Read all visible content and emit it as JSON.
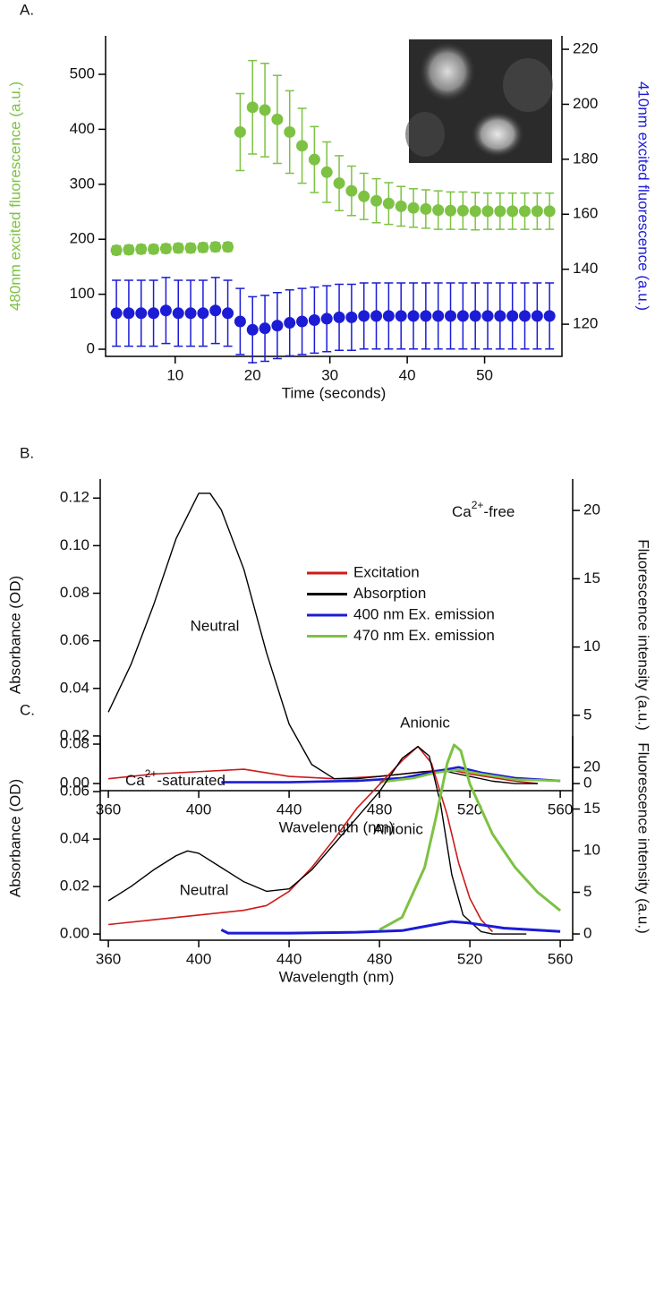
{
  "chart_data": [
    {
      "type": "scatter",
      "panel": "A.",
      "x_label": "Time (seconds)",
      "y_label": "480nm excited fluorescence (a.u.)",
      "y_label_color": "#7dc243",
      "y2_label": "410nm excited fluorescence (a.u.)",
      "y2_label_color": "#1c1cd6",
      "xlim": [
        1,
        60
      ],
      "xticks": [
        10,
        20,
        30,
        40,
        50
      ],
      "ylim": [
        -13,
        570
      ],
      "yticks": [
        0,
        100,
        200,
        300,
        400,
        500
      ],
      "y2lim": [
        108.3,
        224.9
      ],
      "y2ticks": [
        120,
        140,
        160,
        180,
        200,
        220
      ],
      "series": [
        {
          "color": "#7dc243",
          "axis": "y",
          "x": [
            2.4,
            4,
            5.6,
            7.2,
            8.8,
            10.4,
            12,
            13.6,
            15.2,
            16.8,
            18.4,
            20,
            21.6,
            23.2,
            24.8,
            26.4,
            28,
            29.6,
            31.2,
            32.8,
            34.4,
            36,
            37.6,
            39.2,
            40.8,
            42.4,
            44,
            45.6,
            47.2,
            48.8,
            50.4,
            52,
            53.6,
            55.2,
            56.8,
            58.4
          ],
          "values": [
            180,
            181,
            182,
            182,
            183,
            184,
            184,
            185,
            186,
            186,
            395,
            440,
            435,
            418,
            395,
            370,
            345,
            322,
            302,
            288,
            278,
            270,
            265,
            260,
            257,
            255,
            253,
            252,
            252,
            251,
            251,
            251,
            251,
            251,
            251,
            251
          ],
          "errors": [
            8,
            8,
            8,
            8,
            8,
            8,
            8,
            8,
            8,
            8,
            70,
            85,
            85,
            80,
            75,
            68,
            60,
            55,
            50,
            45,
            42,
            40,
            38,
            36,
            35,
            35,
            35,
            34,
            34,
            34,
            33,
            33,
            33,
            33,
            33,
            33
          ]
        },
        {
          "color": "#1c1cd6",
          "axis": "y2",
          "x": [
            2.4,
            4,
            5.6,
            7.2,
            8.8,
            10.4,
            12,
            13.6,
            15.2,
            16.8,
            18.4,
            20,
            21.6,
            23.2,
            24.8,
            26.4,
            28,
            29.6,
            31.2,
            32.8,
            34.4,
            36,
            37.6,
            39.2,
            40.8,
            42.4,
            44,
            45.6,
            47.2,
            48.8,
            50.4,
            52,
            53.6,
            55.2,
            56.8,
            58.4
          ],
          "values": [
            124,
            124,
            124,
            124,
            125,
            124,
            124,
            124,
            125,
            124,
            121,
            118,
            118.5,
            119.5,
            120.5,
            121,
            121.5,
            122,
            122.5,
            122.5,
            123,
            123,
            123,
            123,
            123,
            123,
            123,
            123,
            123,
            123,
            123,
            123,
            123,
            123,
            123,
            123
          ],
          "errors": [
            12,
            12,
            12,
            12,
            12,
            12,
            12,
            12,
            12,
            12,
            12,
            12,
            12,
            12,
            12,
            12,
            12,
            12,
            12,
            12,
            12,
            12,
            12,
            12,
            12,
            12,
            12,
            12,
            12,
            12,
            12,
            12,
            12,
            12,
            12,
            12
          ]
        }
      ],
      "annotations": []
    },
    {
      "type": "line",
      "panel": "B.",
      "x_label": "Wavelength (nm)",
      "y_label": "Absorbance (OD)",
      "y2_label": "Fluorescence intensity (a.u.)",
      "xlim": [
        356.4,
        565.5
      ],
      "xticks": [
        360,
        400,
        440,
        480,
        520,
        560
      ],
      "ylim": [
        -0.003,
        0.128
      ],
      "yticks": [
        {
          "value": 0,
          "label": "0.00"
        },
        {
          "value": 0.02,
          "label": "0.02"
        },
        {
          "value": 0.04,
          "label": "0.04"
        },
        {
          "value": 0.06,
          "label": "0.06"
        },
        {
          "value": 0.08,
          "label": "0.08"
        },
        {
          "value": 0.1,
          "label": "0.10"
        },
        {
          "value": 0.12,
          "label": "0.12"
        }
      ],
      "y2lim": [
        -0.52,
        22.3
      ],
      "y2ticks": [
        0,
        5,
        10,
        15,
        20
      ],
      "legend": "right",
      "series": [
        {
          "name": "Excitation",
          "color": "#cc1a1a",
          "axis": "y",
          "width": 1.6,
          "x": [
            360,
            380,
            400,
            420,
            440,
            460,
            480,
            500,
            510,
            520,
            540,
            550
          ],
          "values": [
            0.002,
            0.004,
            0.005,
            0.006,
            0.003,
            0.002,
            0.003,
            0.005,
            0.006,
            0.004,
            0.001,
            0.0
          ]
        },
        {
          "name": "Absorption",
          "color": "#000000",
          "axis": "y",
          "width": 1.4,
          "x": [
            360,
            370,
            380,
            390,
            400,
            405,
            410,
            420,
            430,
            440,
            450,
            460,
            470,
            480,
            490,
            500,
            510,
            520,
            530,
            540,
            550
          ],
          "values": [
            0.03,
            0.05,
            0.075,
            0.103,
            0.122,
            0.122,
            0.115,
            0.09,
            0.055,
            0.025,
            0.008,
            0.002,
            0.002,
            0.003,
            0.004,
            0.005,
            0.005,
            0.003,
            0.001,
            0.0,
            0.0
          ]
        },
        {
          "name": "400 nm Ex. emission",
          "color": "#1c1cd6",
          "axis": "y2",
          "width": 2.6,
          "x": [
            410,
            440,
            470,
            490,
            505,
            515,
            525,
            540,
            560
          ],
          "values": [
            0.1,
            0.1,
            0.2,
            0.4,
            0.9,
            1.2,
            0.8,
            0.4,
            0.2
          ]
        },
        {
          "name": "470 nm Ex. emission",
          "color": "#7dc243",
          "axis": "y2",
          "width": 2.6,
          "x": [
            480,
            495,
            505,
            515,
            525,
            540,
            560
          ],
          "values": [
            0.1,
            0.4,
            0.8,
            1.0,
            0.7,
            0.3,
            0.2
          ]
        }
      ],
      "annotations": [
        {
          "text": [
            "Ca",
            "2+",
            "-free"
          ]
        },
        {
          "text": "Neutral"
        },
        {
          "text": "Anionic"
        }
      ]
    },
    {
      "type": "line",
      "panel": "C.",
      "x_label": "Wavelength (nm)",
      "y_label": "Absorbance (OD)",
      "y2_label": "Fluorescence intensity (a.u.)",
      "xlim": [
        356.4,
        565.5
      ],
      "xticks": [
        360,
        400,
        440,
        480,
        520,
        560
      ],
      "ylim": [
        -0.0026,
        0.0834
      ],
      "yticks": [
        {
          "value": 0,
          "label": "0.00"
        },
        {
          "value": 0.02,
          "label": "0.02"
        },
        {
          "value": 0.04,
          "label": "0.04"
        },
        {
          "value": 0.06,
          "label": "0.06"
        },
        {
          "value": 0.08,
          "label": "0.08"
        }
      ],
      "y2lim": [
        -0.75,
        23.76
      ],
      "y2ticks": [
        0,
        5,
        10,
        15,
        20
      ],
      "series": [
        {
          "color": "#cc1a1a",
          "axis": "y",
          "width": 1.6,
          "x": [
            360,
            380,
            400,
            420,
            430,
            440,
            450,
            460,
            470,
            480,
            490,
            497,
            503,
            510,
            515,
            520,
            525,
            530
          ],
          "values": [
            0.004,
            0.006,
            0.008,
            0.01,
            0.012,
            0.018,
            0.028,
            0.04,
            0.053,
            0.063,
            0.073,
            0.079,
            0.072,
            0.05,
            0.03,
            0.015,
            0.006,
            0.001
          ]
        },
        {
          "color": "#000000",
          "axis": "y",
          "width": 1.4,
          "x": [
            360,
            370,
            380,
            390,
            395,
            400,
            410,
            420,
            430,
            440,
            450,
            460,
            470,
            480,
            490,
            497,
            502,
            507,
            512,
            517,
            525,
            530,
            545
          ],
          "values": [
            0.014,
            0.02,
            0.027,
            0.033,
            0.035,
            0.034,
            0.028,
            0.022,
            0.018,
            0.019,
            0.027,
            0.038,
            0.049,
            0.06,
            0.074,
            0.079,
            0.075,
            0.055,
            0.025,
            0.008,
            0.001,
            0.0,
            0.0
          ]
        },
        {
          "color": "#7dc243",
          "axis": "y2",
          "width": 3,
          "x": [
            480,
            490,
            500,
            505,
            510,
            513,
            516,
            520,
            530,
            540,
            550,
            560
          ],
          "values": [
            0.5,
            2,
            8,
            14,
            20.5,
            22.7,
            22,
            18,
            12,
            8,
            5,
            2.8
          ]
        },
        {
          "color": "#1c1cd6",
          "axis": "y2",
          "width": 3,
          "x": [
            410,
            413,
            440,
            470,
            490,
            500,
            512,
            520,
            535,
            560
          ],
          "values": [
            0.5,
            0.1,
            0.1,
            0.2,
            0.4,
            0.9,
            1.5,
            1.3,
            0.7,
            0.3
          ]
        }
      ],
      "annotations": [
        {
          "text": [
            "Ca",
            "2+",
            "-saturated"
          ]
        },
        {
          "text": "Neutral"
        },
        {
          "text": "Anionic"
        }
      ]
    }
  ]
}
